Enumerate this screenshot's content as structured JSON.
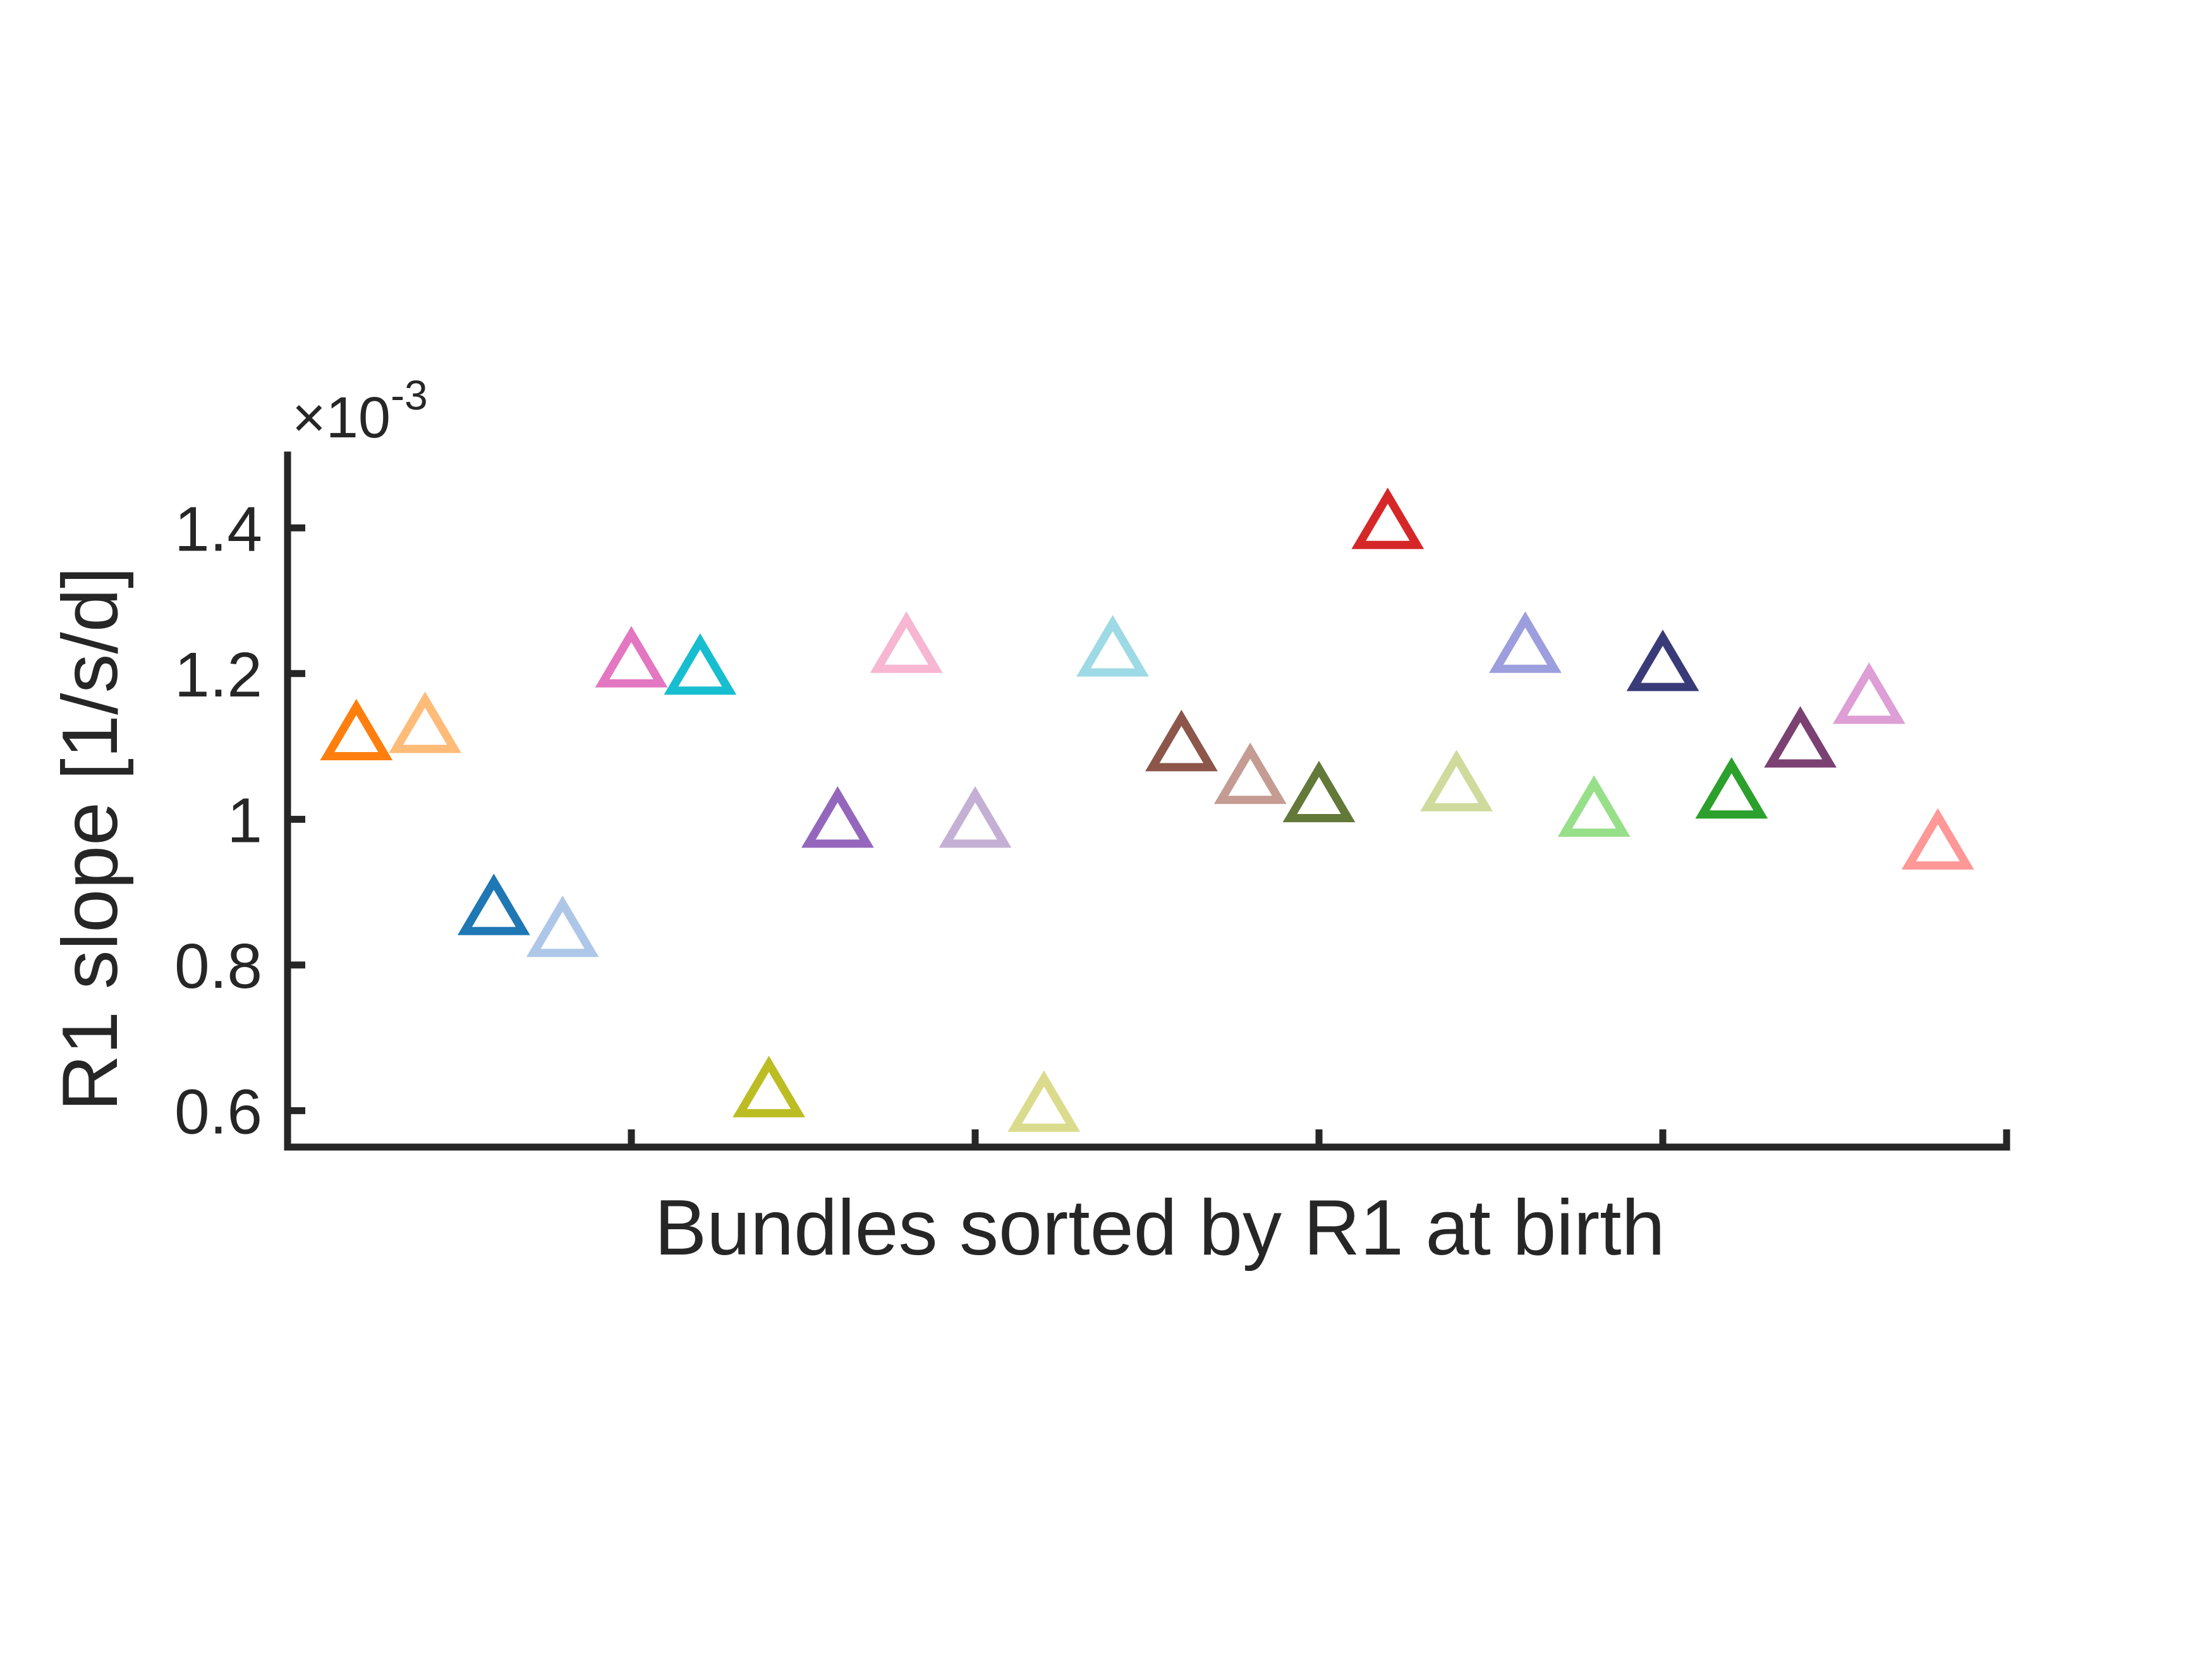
{
  "chart_data": {
    "type": "scatter",
    "title": "",
    "xlabel": "Bundles sorted by R1 at birth",
    "ylabel": "R1 slope [1/s/d]",
    "y_exponent_label": "×10",
    "y_exponent_power": "-3",
    "y_scale_factor": 0.001,
    "xlim": [
      0,
      25
    ],
    "ylim": [
      0.55,
      1.5
    ],
    "x_ticks": [
      5,
      10,
      15,
      20,
      25
    ],
    "y_ticks": [
      {
        "value": 0.6,
        "label": "0.6"
      },
      {
        "value": 0.8,
        "label": "0.8"
      },
      {
        "value": 1.0,
        "label": "1"
      },
      {
        "value": 1.2,
        "label": "1.2"
      },
      {
        "value": 1.4,
        "label": "1.4"
      }
    ],
    "marker": "triangle-up",
    "grid": false,
    "points": [
      {
        "x": 1,
        "y": 1.115,
        "color": "#ff7f0e"
      },
      {
        "x": 2,
        "y": 1.125,
        "color": "#ffbb78"
      },
      {
        "x": 3,
        "y": 0.875,
        "color": "#1f77b4"
      },
      {
        "x": 4,
        "y": 0.845,
        "color": "#aec7e8"
      },
      {
        "x": 5,
        "y": 1.215,
        "color": "#e377c2"
      },
      {
        "x": 6,
        "y": 1.205,
        "color": "#17becf"
      },
      {
        "x": 7,
        "y": 0.625,
        "color": "#bcbd22"
      },
      {
        "x": 8,
        "y": 0.995,
        "color": "#9467bd"
      },
      {
        "x": 9,
        "y": 1.235,
        "color": "#f7b6d2"
      },
      {
        "x": 10,
        "y": 0.995,
        "color": "#c5b0d5"
      },
      {
        "x": 11,
        "y": 0.605,
        "color": "#dbdb8d"
      },
      {
        "x": 12,
        "y": 1.23,
        "color": "#9edae5"
      },
      {
        "x": 13,
        "y": 1.1,
        "color": "#8c564b"
      },
      {
        "x": 14,
        "y": 1.055,
        "color": "#c49c94"
      },
      {
        "x": 15,
        "y": 1.03,
        "color": "#637939"
      },
      {
        "x": 16,
        "y": 1.405,
        "color": "#d62728"
      },
      {
        "x": 17,
        "y": 1.045,
        "color": "#cedb9c"
      },
      {
        "x": 18,
        "y": 1.235,
        "color": "#9c9ede"
      },
      {
        "x": 19,
        "y": 1.01,
        "color": "#98df8a"
      },
      {
        "x": 20,
        "y": 1.21,
        "color": "#393b79"
      },
      {
        "x": 21,
        "y": 1.035,
        "color": "#2ca02c"
      },
      {
        "x": 22,
        "y": 1.105,
        "color": "#7b4173"
      },
      {
        "x": 23,
        "y": 1.165,
        "color": "#de9ed6"
      },
      {
        "x": 24,
        "y": 0.965,
        "color": "#ff9896"
      }
    ]
  }
}
